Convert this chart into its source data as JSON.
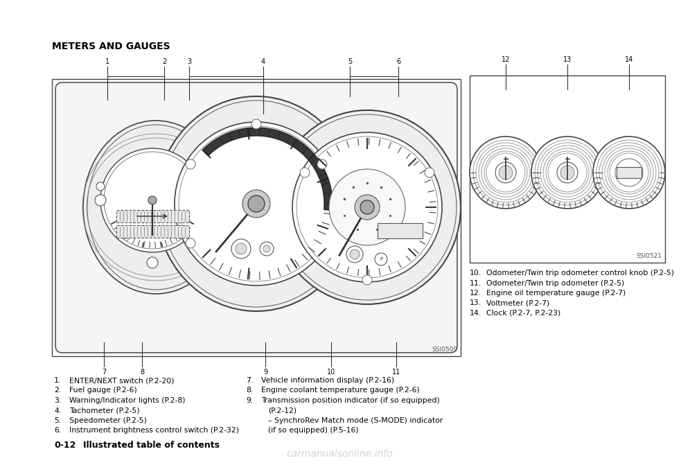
{
  "bg_color": "#ffffff",
  "title": "METERS AND GAUGES",
  "ssi0509_label": "SSI0509",
  "ssi0521_label": "SSI0521",
  "left_items": [
    [
      "1.",
      "ENTER/NEXT switch (P.2-20)"
    ],
    [
      "2.",
      "Fuel gauge (P.2-6)"
    ],
    [
      "3.",
      "Warning/Indicator lights (P.2-8)"
    ],
    [
      "4.",
      "Tachometer (P.2-5)"
    ],
    [
      "5.",
      "Speedometer (P.2-5)"
    ],
    [
      "6.",
      "Instrument brightness control switch (P.2-32)"
    ]
  ],
  "right_col1": [
    [
      "7.",
      "Vehicle information display (P.2-16)"
    ],
    [
      "8.",
      "Engine coolant temperature gauge (P.2-6)"
    ],
    [
      "9.",
      "Transmission position indicator (if so equipped)"
    ]
  ],
  "right_col2": [
    "(P.2-12)",
    "– SynchroRev Match mode (S-MODE) indicator",
    "(if so equipped) (P.5-16)"
  ],
  "side_items": [
    [
      "10.",
      "Odometer/Twin trip odometer control knob (P.2-5)"
    ],
    [
      "11.",
      "Odometer/Twin trip odometer (P.2-5)"
    ],
    [
      "12.",
      "Engine oil temperature gauge (P.2-7)"
    ],
    [
      "13.",
      "Voltmeter (P.2-7)"
    ],
    [
      "14.",
      "Clock (P.2-7, P.2-23)"
    ]
  ],
  "watermark": "carmanualsonline.info",
  "text_color": "#000000",
  "line_color": "#333333",
  "footer_num": "0-12",
  "footer_text": "Illustrated table of contents"
}
